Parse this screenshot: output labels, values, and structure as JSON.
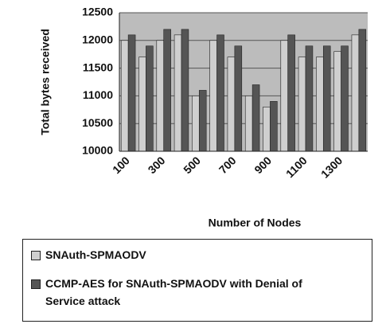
{
  "chart_data": {
    "type": "bar",
    "ylabel": "Total bytes received",
    "xlabel": "Number of Nodes",
    "categories": [
      "100",
      null,
      "300",
      null,
      "500",
      null,
      "700",
      null,
      "900",
      null,
      "1100",
      null,
      "1300",
      null
    ],
    "series": [
      {
        "name": "SNAuth-SPMAODV",
        "color": "#cfcfcf",
        "values": [
          12000,
          11700,
          12000,
          12100,
          11000,
          12000,
          11700,
          11000,
          10800,
          12000,
          11700,
          11700,
          11800,
          12100
        ]
      },
      {
        "name": "CCMP-AES for SNAuth-SPMAODV with Denial of Service attack",
        "color": "#555555",
        "values": [
          12100,
          11900,
          12200,
          12200,
          11100,
          12100,
          11900,
          11200,
          10900,
          12100,
          11900,
          11900,
          11900,
          12200
        ]
      }
    ],
    "ylim": [
      10000,
      12500
    ],
    "yticks": [
      10000,
      10500,
      11000,
      11500,
      12000,
      12500
    ],
    "grid": true
  }
}
